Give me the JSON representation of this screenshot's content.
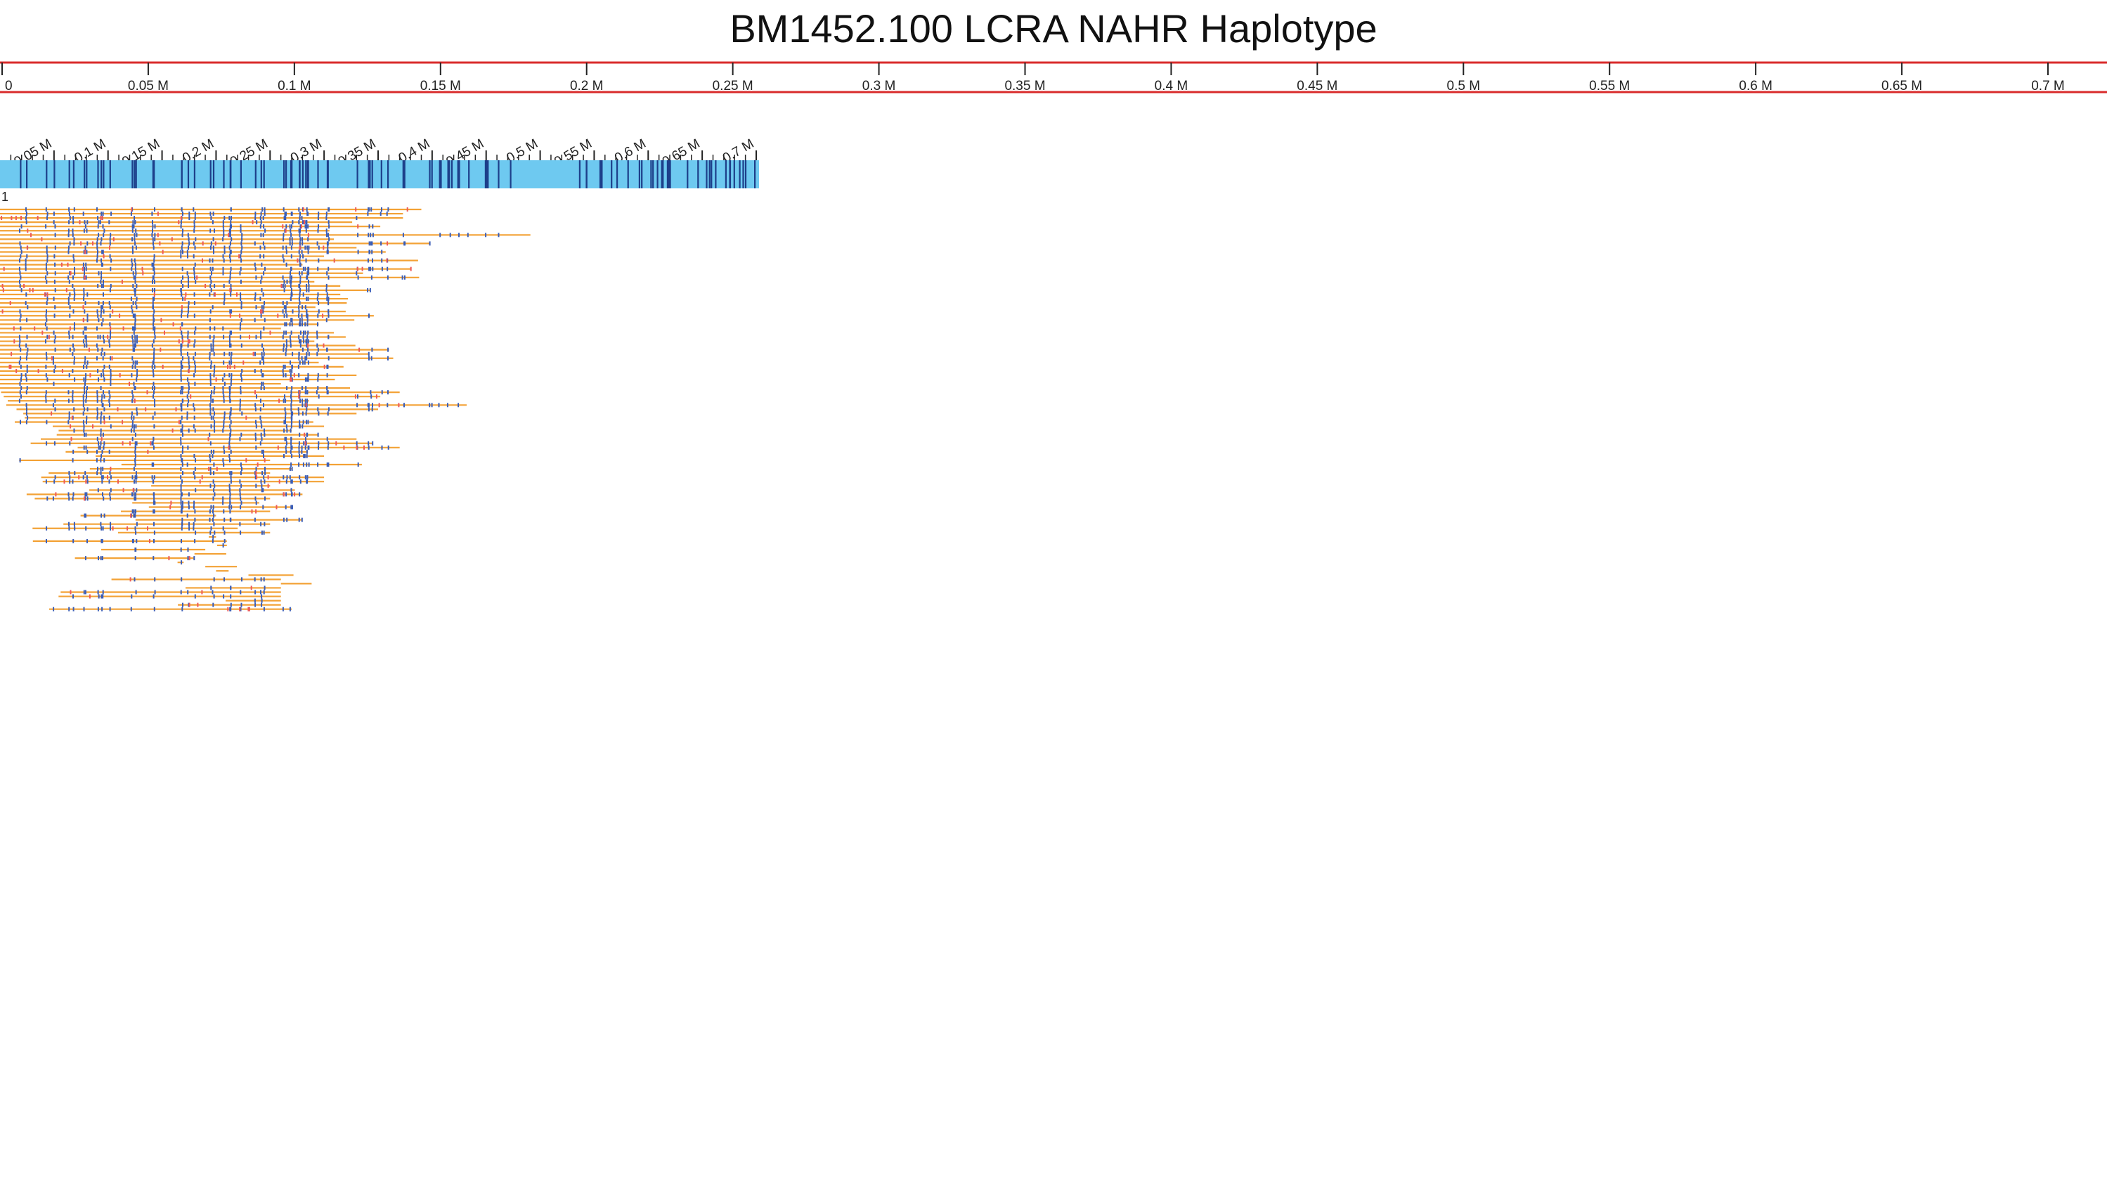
{
  "title": "BM1452.100 LCRA NAHR Haplotype",
  "colors": {
    "ruler_border": "#d92b2b",
    "tick": "#222222",
    "reference_bar": "#6ec9f0",
    "reference_mark": "#1d3f8a",
    "molecule_line": "#f3a236",
    "aligned_label": "#3b5eb7",
    "unaligned_label": "#ee5a5a"
  },
  "top_ruler": {
    "ticks": [
      "0",
      "0.05 M",
      "0.1 M",
      "0.15 M",
      "0.2 M",
      "0.25 M",
      "0.3 M",
      "0.35 M",
      "0.4 M",
      "0.45 M",
      "0.5 M",
      "0.55 M",
      "0.6 M",
      "0.65 M",
      "0.7 M"
    ]
  },
  "reference_ruler": {
    "ticks": [
      "0.05 M",
      "0.1 M",
      "0.15 M",
      "0.2 M",
      "0.25 M",
      "0.3 M",
      "0.35 M",
      "0.4 M",
      "0.45 M",
      "0.5 M",
      "0.55 M",
      "0.6 M",
      "0.65 M",
      "0.7 M"
    ]
  },
  "reference_map_id": "1",
  "molecules": {
    "count": 95,
    "end_positions_mb": [
      0.39,
      0.373,
      0.373,
      0.326,
      0.352,
      0.305,
      0.491,
      0.309,
      0.398,
      0.33,
      0.357,
      0.3,
      0.387,
      0.28,
      0.38,
      0.336,
      0.388,
      0.291,
      0.315,
      0.343,
      0.315,
      0.322,
      0.321,
      0.292,
      0.32,
      0.346,
      0.328,
      0.295,
      0.26,
      0.309,
      0.32,
      0.291,
      0.329,
      0.36,
      0.342,
      0.364,
      0.295,
      0.318,
      0.27,
      0.33,
      0.31,
      0.26,
      0.324,
      0.37,
      0.352,
      0.286,
      0.432,
      0.35,
      0.33,
      0.27,
      0.29,
      0.3,
      0.27,
      0.295,
      0.33,
      0.345,
      0.37,
      0.285,
      0.3,
      0.25,
      0.335,
      0.27,
      0.25,
      0.3,
      0.3,
      0.25,
      0.273,
      0.28,
      0.25,
      0.24,
      0.27,
      0.25,
      0.2,
      0.28,
      0.25,
      0.22,
      0.25,
      0.2,
      0.21,
      0.21,
      0.19,
      0.18,
      0.18,
      0.17,
      0.19,
      0.2,
      0.23,
      0.26,
      0.26,
      0.26,
      0.26,
      0.26,
      0.26,
      0.26,
      0.27
    ]
  }
}
